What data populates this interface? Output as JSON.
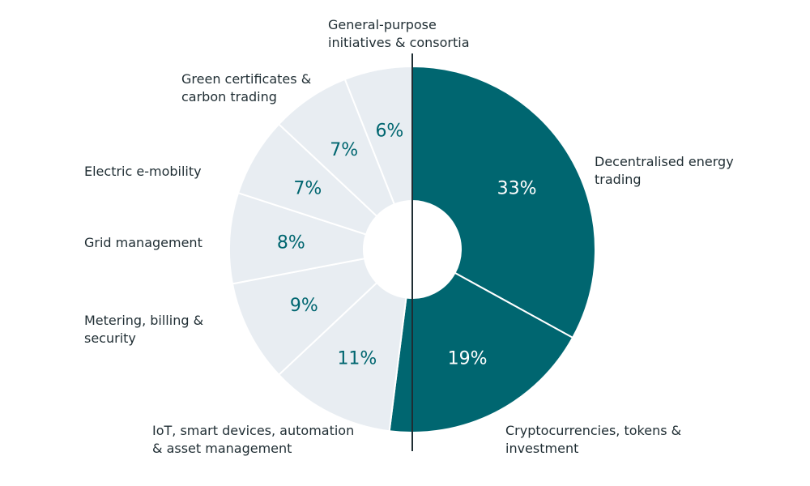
{
  "chart_data": {
    "type": "donut",
    "title": "",
    "colors": {
      "highlight": "#006670",
      "muted": "#e8edf2",
      "highlight_text": "#ffffff",
      "muted_text": "#006670",
      "label_text": "#1f2d33",
      "divider": "#1f2d33"
    },
    "slices": [
      {
        "label_lines": [
          "Decentralised energy",
          "trading"
        ],
        "value": 33,
        "value_label": "33%",
        "highlight": true
      },
      {
        "label_lines": [
          "Cryptocurrencies, tokens &",
          "investment"
        ],
        "value": 19,
        "value_label": "19%",
        "highlight": true
      },
      {
        "label_lines": [
          "IoT, smart devices, automation",
          "& asset management"
        ],
        "value": 11,
        "value_label": "11%",
        "highlight": false
      },
      {
        "label_lines": [
          "Metering, billing &",
          "security"
        ],
        "value": 9,
        "value_label": "9%",
        "highlight": false
      },
      {
        "label_lines": [
          "Grid management"
        ],
        "value": 8,
        "value_label": "8%",
        "highlight": false
      },
      {
        "label_lines": [
          "Electric e-mobility"
        ],
        "value": 7,
        "value_label": "7%",
        "highlight": false
      },
      {
        "label_lines": [
          "Green certificates &",
          "carbon trading"
        ],
        "value": 7,
        "value_label": "7%",
        "highlight": false
      },
      {
        "label_lines": [
          "General-purpose",
          "initiatives & consortia"
        ],
        "value": 6,
        "value_label": "6%",
        "highlight": false
      }
    ]
  }
}
